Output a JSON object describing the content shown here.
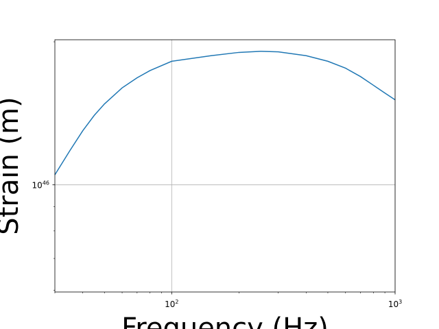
{
  "chart_data": {
    "type": "line",
    "x_label": "Frequency (Hz)",
    "y_label": "Strain (m)",
    "x": [
      30,
      35,
      40,
      45,
      50,
      60,
      70,
      80,
      100,
      150,
      200,
      250,
      300,
      400,
      500,
      600,
      700,
      800,
      900,
      1000
    ],
    "series": [
      {
        "name": "strain",
        "color": "#1f77b4",
        "values": [
          1.05e+46,
          1.18e+46,
          1.3e+46,
          1.4e+46,
          1.48e+46,
          1.6e+46,
          1.68e+46,
          1.74e+46,
          1.82e+46,
          1.87e+46,
          1.9e+46,
          1.91e+46,
          1.905e+46,
          1.87e+46,
          1.82e+46,
          1.76e+46,
          1.69e+46,
          1.62e+46,
          1.56e+46,
          1.51e+46
        ]
      }
    ],
    "xlog": true,
    "ylog": true,
    "xlim": [
      30,
      1000
    ],
    "ylim": [
      5.95e+45,
      2.02e+46
    ],
    "xticks": [
      {
        "value": 100,
        "label": "10^2"
      },
      {
        "value": 1000,
        "label": "10^3"
      }
    ],
    "yticks": [
      {
        "value": 1e+46,
        "label": "10^46"
      }
    ],
    "xminorticks": [
      30,
      40,
      50,
      60,
      70,
      80,
      90,
      200,
      300,
      400,
      500,
      600,
      700,
      800,
      900
    ],
    "yminorticks": [
      6e+45,
      7e+45,
      8e+45,
      9e+45,
      2e+46
    ],
    "grid": true
  }
}
